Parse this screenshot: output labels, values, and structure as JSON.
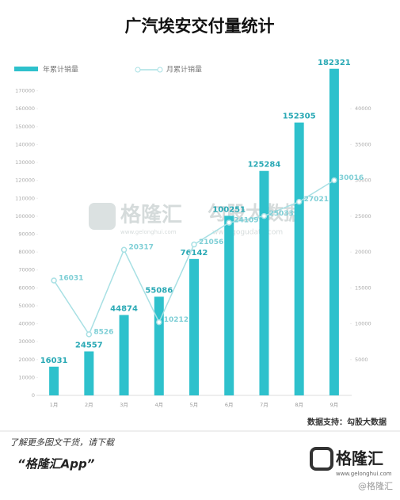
{
  "chart_data": {
    "type": "bar_line",
    "title": "广汽埃安交付量统计",
    "categories": [
      "1月",
      "2月",
      "3月",
      "4月",
      "5月",
      "6月",
      "7月",
      "8月",
      "9月"
    ],
    "series": [
      {
        "name": "年累计销量",
        "type": "bar",
        "color": "#2ec1cc",
        "values": [
          16031,
          24557,
          44874,
          55086,
          76142,
          100251,
          125284,
          152305,
          182321
        ]
      },
      {
        "name": "月累计销量",
        "type": "line",
        "axis": "y2",
        "color": "#a8e0e4",
        "values": [
          16031,
          8526,
          20317,
          10212,
          21056,
          24109,
          25033,
          27021,
          30016
        ]
      }
    ],
    "ylim": [
      0,
      180000
    ],
    "yticks": [
      0,
      10000,
      20000,
      30000,
      40000,
      50000,
      60000,
      70000,
      80000,
      90000,
      100000,
      110000,
      120000,
      130000,
      140000,
      150000,
      160000,
      170000
    ],
    "y2lim": [
      0,
      45000
    ],
    "y2ticks": [
      5000,
      10000,
      15000,
      20000,
      25000,
      30000,
      35000,
      40000
    ],
    "source": "数据支持：勾股大数据"
  },
  "watermark": {
    "brand": "格隆汇",
    "brand_url": "www.gelonghui.com",
    "partner": "勾股大数据",
    "partner_url": "www.gogudata.com"
  },
  "footer": {
    "line1": "了解更多图文干货，请下载",
    "line2": "“格隆汇App”",
    "logo": "格隆汇",
    "logo_url": "www.gelonghui.com",
    "corner": "@格隆汇"
  }
}
